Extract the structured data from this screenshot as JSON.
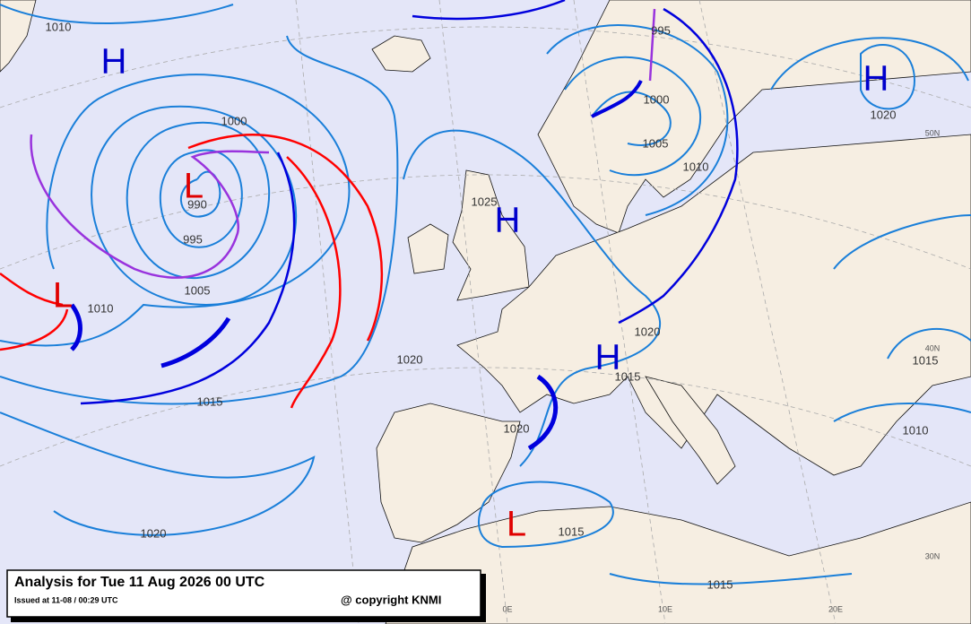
{
  "title": "Analysis for Tue 11 Aug 2026 00 UTC",
  "issued": "Issued at 11-08 / 00:29 UTC",
  "copyright": "@ copyright KNMI",
  "pressure_centers": [
    "H",
    "L",
    "H",
    "L",
    "H",
    "L",
    "H"
  ],
  "isobar_labels": [
    "1010",
    "1000",
    "990",
    "995",
    "1005",
    "1010",
    "1015",
    "1020",
    "1020",
    "1020",
    "1015",
    "1015",
    "1015",
    "1020",
    "1025",
    "995",
    "1000",
    "1005",
    "1010",
    "1020",
    "1015",
    "1010"
  ],
  "grid_labels": [
    "50N",
    "40N",
    "30N",
    "0E",
    "10E",
    "20E"
  ]
}
